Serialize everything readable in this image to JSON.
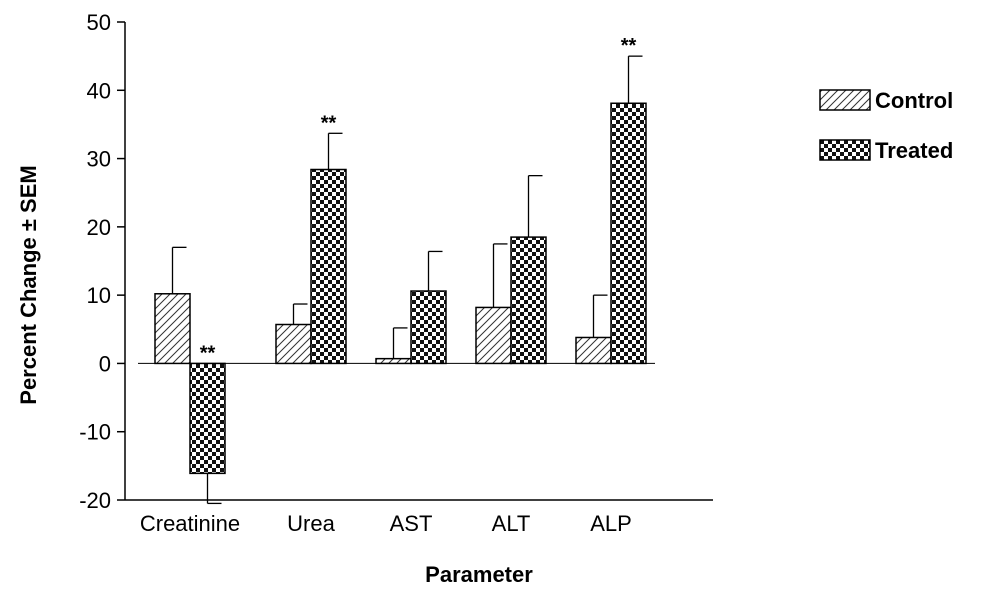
{
  "chart_data": {
    "type": "bar",
    "categories": [
      "Creatinine",
      "Urea",
      "AST",
      "ALT",
      "ALP"
    ],
    "series": [
      {
        "name": "Control",
        "pattern": "hatch",
        "values": [
          10.2,
          5.7,
          0.7,
          8.2,
          3.8
        ],
        "errors": [
          6.8,
          3.0,
          4.5,
          9.3,
          6.2
        ],
        "significance": [
          "",
          "",
          "",
          "",
          ""
        ]
      },
      {
        "name": "Treated",
        "pattern": "checker",
        "values": [
          -16.1,
          28.4,
          10.6,
          18.5,
          38.1
        ],
        "errors": [
          4.4,
          5.3,
          5.8,
          9.0,
          6.9
        ],
        "significance": [
          "**",
          "**",
          "",
          "",
          "**"
        ]
      }
    ],
    "title": "",
    "xlabel": "Parameter",
    "ylabel": "Percent Change ± SEM",
    "ylim": [
      -20,
      50
    ],
    "yticks": [
      -20,
      -10,
      0,
      10,
      20,
      30,
      40,
      50
    ],
    "grid": false,
    "legend_position": "right"
  }
}
